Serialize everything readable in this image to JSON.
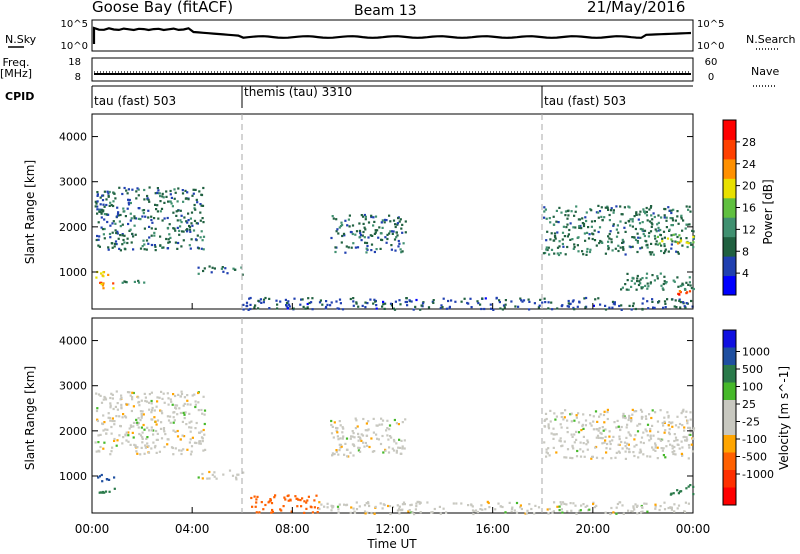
{
  "header": {
    "site": "Goose Bay (fitACF)",
    "beam": "Beam 13",
    "date": "21/May/2016"
  },
  "strips": {
    "nsky_label": "N.Sky",
    "nsearch_label": "N.Search",
    "nsky_ticks": [
      "10^5",
      "10^0"
    ],
    "nsearch_ticks": [
      "10^5",
      "10^0"
    ],
    "freq_label": "Freq.",
    "freq_unit": "[MHz]",
    "freq_ticks": [
      "18",
      "8"
    ],
    "nave_label": "Nave",
    "nave_ticks": [
      "60",
      "0"
    ],
    "cpid_label": "CPID",
    "cpid_modes": [
      {
        "label": "tau (fast) 503",
        "start_hour": 0
      },
      {
        "label": "themis (tau) 3310",
        "start_hour": 6
      },
      {
        "label": "tau (fast) 503",
        "start_hour": 18
      }
    ]
  },
  "colors": {
    "power_scale": [
      "#0000ff",
      "#2040b0",
      "#206040",
      "#409070",
      "#60c040",
      "#e8e000",
      "#ff9000",
      "#ff4000",
      "#ff0000"
    ],
    "velocity_scale": [
      "#1010e0",
      "#1f4fa0",
      "#2a7a4a",
      "#46b82a",
      "#c8c8c0",
      "#c8c8c0",
      "#ffa500",
      "#ff6000",
      "#ff3000",
      "#ff0000"
    ]
  },
  "chart_data": [
    {
      "type": "heatmap",
      "name": "power",
      "xlabel": "",
      "ylabel": "Slant Range [km]",
      "xlim": [
        0,
        24
      ],
      "ylim": [
        180,
        4500
      ],
      "yticks": [
        "1000",
        "2000",
        "3000",
        "4000"
      ],
      "colorbar_label": "Power [dB]",
      "colorbar_ticks": [
        "4",
        "8",
        "12",
        "16",
        "20",
        "24",
        "28"
      ],
      "regions": [
        {
          "x": [
            0.1,
            0.9
          ],
          "y": [
            650,
            800
          ],
          "value": 22
        },
        {
          "x": [
            0.1,
            0.9
          ],
          "y": [
            900,
            1050
          ],
          "value": 20
        },
        {
          "x": [
            0.9,
            2.2
          ],
          "y": [
            780,
            830
          ],
          "value": 10
        },
        {
          "x": [
            0.1,
            4.5
          ],
          "y": [
            1500,
            2900
          ],
          "value": 8
        },
        {
          "x": [
            0.1,
            0.6
          ],
          "y": [
            2150,
            2650
          ],
          "value": 7
        },
        {
          "x": [
            4.2,
            6.0
          ],
          "y": [
            950,
            1150
          ],
          "value": 9
        },
        {
          "x": [
            6.0,
            24.0
          ],
          "y": [
            180,
            450
          ],
          "value": 6
        },
        {
          "x": [
            9.5,
            12.5
          ],
          "y": [
            1450,
            2300
          ],
          "value": 8
        },
        {
          "x": [
            18.0,
            24.0
          ],
          "y": [
            1400,
            2500
          ],
          "value": 9
        },
        {
          "x": [
            22.5,
            24.0
          ],
          "y": [
            1650,
            1850
          ],
          "value": 17
        },
        {
          "x": [
            21.0,
            24.0
          ],
          "y": [
            600,
            1000
          ],
          "value": 10
        },
        {
          "x": [
            23.3,
            24.0
          ],
          "y": [
            520,
            620
          ],
          "value": 24
        }
      ]
    },
    {
      "type": "heatmap",
      "name": "velocity",
      "xlabel": "Time UT",
      "ylabel": "Slant Range [km]",
      "xticks": [
        "00:00",
        "04:00",
        "08:00",
        "12:00",
        "16:00",
        "20:00",
        "00:00"
      ],
      "xlim": [
        0,
        24
      ],
      "ylim": [
        180,
        4500
      ],
      "yticks": [
        "1000",
        "2000",
        "3000",
        "4000"
      ],
      "colorbar_label": "Velocity [m s^-1]",
      "colorbar_ticks": [
        "1000",
        "500",
        "100",
        "25",
        "-25",
        "-100",
        "-500",
        "-1000"
      ],
      "regions": [
        {
          "x": [
            0.1,
            0.9
          ],
          "y": [
            650,
            800
          ],
          "value": 90
        },
        {
          "x": [
            0.1,
            0.9
          ],
          "y": [
            900,
            1050
          ],
          "value": 700
        },
        {
          "x": [
            0.1,
            4.5
          ],
          "y": [
            1500,
            2900
          ],
          "value": 0
        },
        {
          "x": [
            4.2,
            6.0
          ],
          "y": [
            950,
            1150
          ],
          "value": 0
        },
        {
          "x": [
            6.3,
            9.0
          ],
          "y": [
            200,
            600
          ],
          "value": -200
        },
        {
          "x": [
            9.0,
            24.0
          ],
          "y": [
            180,
            450
          ],
          "value": 0
        },
        {
          "x": [
            9.5,
            12.5
          ],
          "y": [
            1450,
            2300
          ],
          "value": 0
        },
        {
          "x": [
            18.0,
            24.0
          ],
          "y": [
            1400,
            2500
          ],
          "value": 0
        },
        {
          "x": [
            23.0,
            24.0
          ],
          "y": [
            600,
            850
          ],
          "value": 120
        }
      ]
    }
  ]
}
